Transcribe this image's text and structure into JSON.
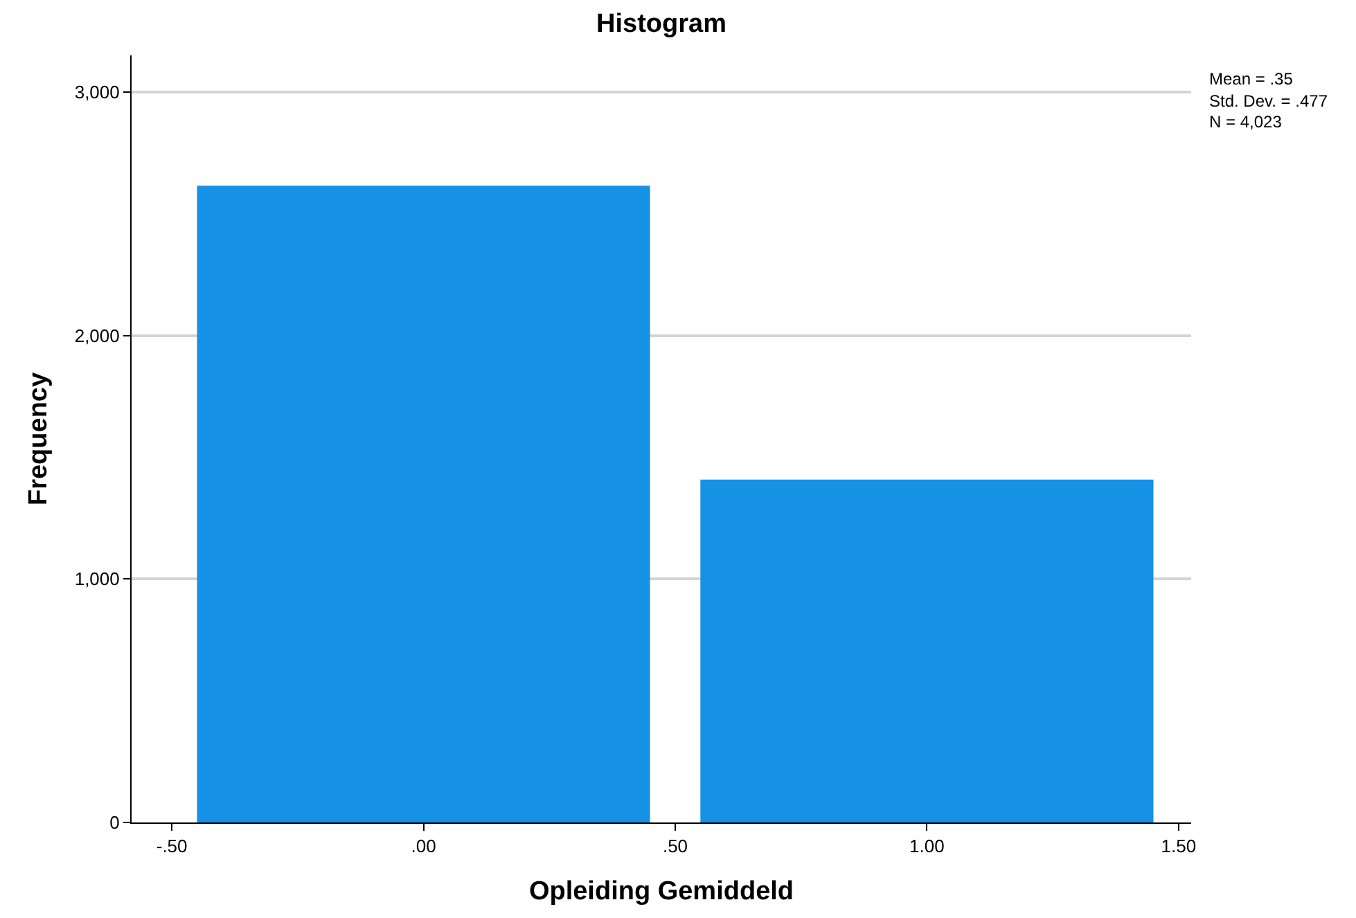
{
  "chart_data": {
    "type": "histogram",
    "title": "Histogram",
    "xlabel": "Opleiding Gemiddeld",
    "ylabel": "Frequency",
    "bins": [
      -0.5,
      0.5,
      1.5
    ],
    "values": [
      2615,
      1408
    ],
    "color": "#1591e6",
    "xlim": [
      -0.58,
      1.525
    ],
    "xticks": [
      {
        "value": -0.5,
        "label": "-.50"
      },
      {
        "value": 0,
        "label": ".00"
      },
      {
        "value": 0.5,
        "label": ".50"
      },
      {
        "value": 1,
        "label": "1.00"
      },
      {
        "value": 1.5,
        "label": "1.50"
      }
    ],
    "ylim": [
      0,
      3150
    ],
    "yticks": [
      {
        "value": 0,
        "label": "0"
      },
      {
        "value": 1000,
        "label": "1,000"
      },
      {
        "value": 2000,
        "label": "2,000"
      },
      {
        "value": 3000,
        "label": "3,000"
      }
    ],
    "grid": "y",
    "annotations": [
      "Mean = .35",
      "Std. Dev. = .477",
      "N = 4,023"
    ]
  }
}
